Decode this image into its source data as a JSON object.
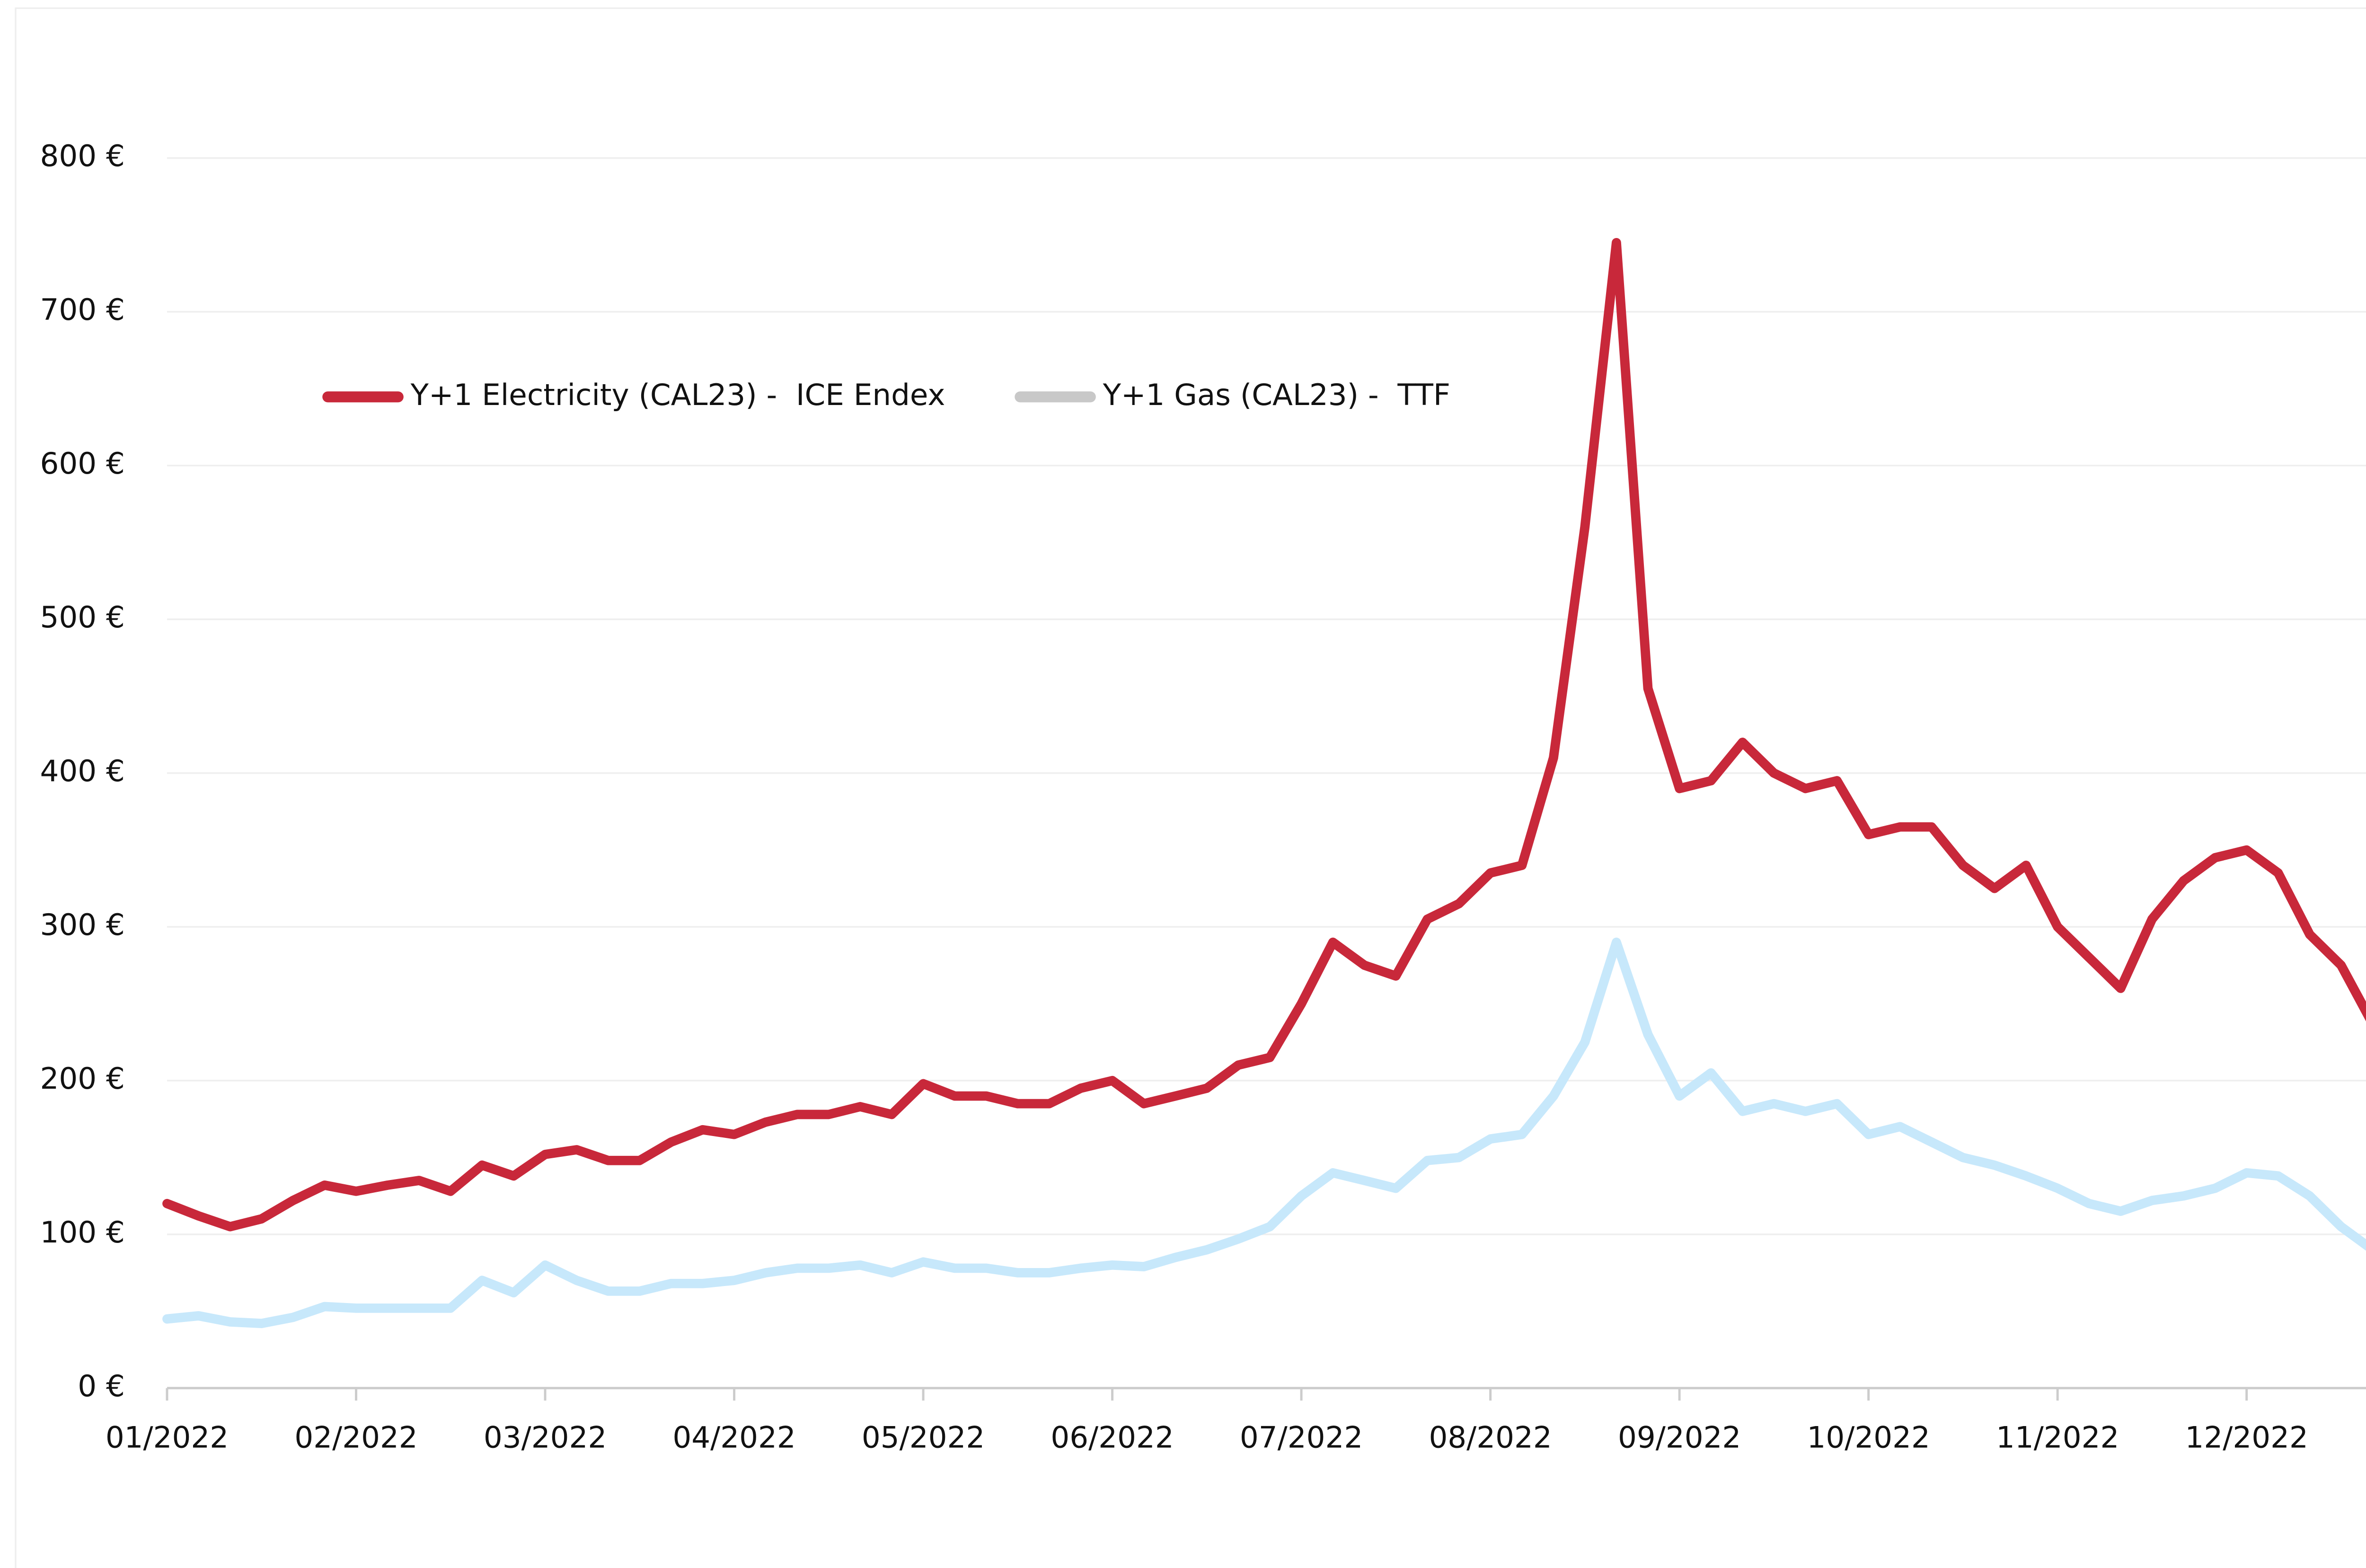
{
  "chart_data": {
    "type": "line",
    "categories": [
      "01/2022",
      null,
      null,
      null,
      null,
      null,
      "02/2022",
      null,
      null,
      null,
      null,
      null,
      "03/2022",
      null,
      null,
      null,
      null,
      null,
      "04/2022",
      null,
      null,
      null,
      null,
      null,
      "05/2022",
      null,
      null,
      null,
      null,
      null,
      "06/2022",
      null,
      null,
      null,
      null,
      null,
      "07/2022",
      null,
      null,
      null,
      null,
      null,
      "08/2022",
      null,
      null,
      null,
      null,
      null,
      "09/2022",
      null,
      null,
      null,
      null,
      null,
      "10/2022",
      null,
      null,
      null,
      null,
      null,
      "11/2022",
      null,
      null,
      null,
      null,
      null,
      "12/2022",
      null,
      null,
      null,
      null,
      null
    ],
    "series": [
      {
        "name": "Y+1 Electricity (CAL23) -  ICE Endex",
        "color": "#c8283a",
        "legend_color": "#c8283a",
        "values": [
          120,
          112,
          105,
          110,
          122,
          132,
          128,
          132,
          135,
          128,
          145,
          138,
          152,
          155,
          148,
          148,
          160,
          168,
          165,
          173,
          178,
          178,
          183,
          178,
          198,
          190,
          190,
          185,
          185,
          195,
          200,
          185,
          190,
          195,
          210,
          215,
          250,
          290,
          275,
          268,
          305,
          315,
          335,
          340,
          410,
          560,
          745,
          455,
          390,
          395,
          420,
          400,
          390,
          395,
          360,
          365,
          365,
          340,
          325,
          340,
          300,
          280,
          260,
          305,
          330,
          345,
          350,
          335,
          295,
          275,
          237,
          225
        ]
      },
      {
        "name": "Y+1 Gas (CAL23) -  TTF",
        "color": "#c7e8fb",
        "legend_color": "#c8c8c8",
        "values": [
          45,
          47,
          43,
          42,
          46,
          53,
          52,
          52,
          52,
          52,
          70,
          62,
          80,
          70,
          63,
          63,
          68,
          68,
          70,
          75,
          78,
          78,
          80,
          75,
          82,
          78,
          78,
          75,
          75,
          78,
          80,
          79,
          85,
          90,
          97,
          105,
          125,
          140,
          135,
          130,
          148,
          150,
          162,
          165,
          190,
          225,
          290,
          230,
          190,
          205,
          180,
          185,
          180,
          185,
          165,
          170,
          160,
          150,
          145,
          138,
          130,
          120,
          115,
          122,
          125,
          130,
          140,
          138,
          125,
          105,
          90,
          87
        ]
      }
    ],
    "ylim": [
      0,
      800
    ],
    "yticks": [
      {
        "value": 0,
        "label": "0 €"
      },
      {
        "value": 100,
        "label": "100 €"
      },
      {
        "value": 200,
        "label": "200 €"
      },
      {
        "value": 300,
        "label": "300 €"
      },
      {
        "value": 400,
        "label": "400 €"
      },
      {
        "value": 500,
        "label": "500 €"
      },
      {
        "value": 600,
        "label": "600 €"
      },
      {
        "value": 700,
        "label": "700 €"
      },
      {
        "value": 800,
        "label": "800 €"
      }
    ],
    "grid": true,
    "legend": "upper left"
  }
}
